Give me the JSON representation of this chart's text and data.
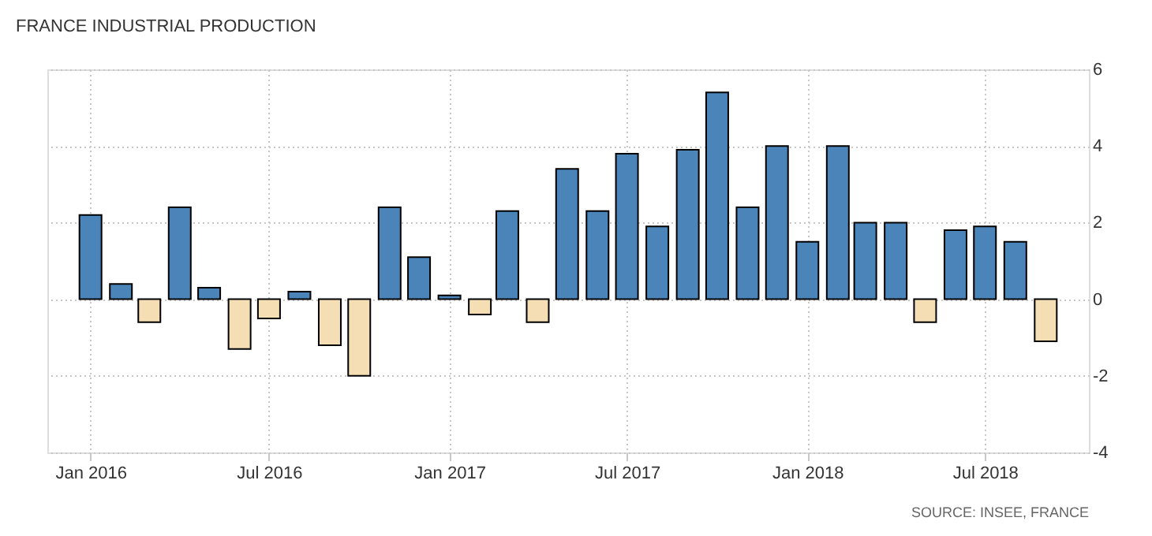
{
  "chart_data": {
    "type": "bar",
    "title": "FRANCE INDUSTRIAL PRODUCTION",
    "x": [
      "2016-01",
      "2016-02",
      "2016-03",
      "2016-04",
      "2016-05",
      "2016-06",
      "2016-07",
      "2016-08",
      "2016-09",
      "2016-10",
      "2016-11",
      "2016-12",
      "2017-01",
      "2017-02",
      "2017-03",
      "2017-04",
      "2017-05",
      "2017-06",
      "2017-07",
      "2017-08",
      "2017-09",
      "2017-10",
      "2017-11",
      "2017-12",
      "2018-01",
      "2018-02",
      "2018-03",
      "2018-04",
      "2018-05",
      "2018-06",
      "2018-07",
      "2018-08",
      "2018-09"
    ],
    "values": [
      2.2,
      0.4,
      -0.6,
      2.4,
      0.3,
      -1.3,
      -0.5,
      0.2,
      -1.2,
      -2.0,
      2.4,
      1.1,
      0.1,
      -0.4,
      2.3,
      -0.6,
      3.4,
      2.3,
      3.8,
      1.9,
      3.9,
      5.4,
      2.4,
      4.0,
      1.5,
      4.0,
      2.0,
      2.0,
      -0.6,
      1.8,
      1.9,
      1.5,
      -1.1
    ],
    "colors": [
      "#4a84b8",
      "#4a84b8",
      "#f5deb3",
      "#4a84b8",
      "#4a84b8",
      "#f5deb3",
      "#f5deb3",
      "#4a84b8",
      "#f5deb3",
      "#f5deb3",
      "#4a84b8",
      "#4a84b8",
      "#4a84b8",
      "#f5deb3",
      "#4a84b8",
      "#f5deb3",
      "#4a84b8",
      "#4a84b8",
      "#4a84b8",
      "#4a84b8",
      "#4a84b8",
      "#4a84b8",
      "#4a84b8",
      "#4a84b8",
      "#4a84b8",
      "#4a84b8",
      "#4a84b8",
      "#4a84b8",
      "#f5deb3",
      "#4a84b8",
      "#4a84b8",
      "#4a84b8",
      "#f5deb3"
    ],
    "xlim": [
      "2015-11-18",
      "2018-10-15"
    ],
    "xticks": [
      {
        "value": "2016-01",
        "label": "Jan 2016"
      },
      {
        "value": "2016-07",
        "label": "Jul 2016"
      },
      {
        "value": "2017-01",
        "label": "Jan 2017"
      },
      {
        "value": "2017-07",
        "label": "Jul 2017"
      },
      {
        "value": "2018-01",
        "label": "Jan 2018"
      },
      {
        "value": "2018-07",
        "label": "Jul 2018"
      }
    ],
    "ylim": [
      -4,
      6
    ],
    "yticks": [
      -4,
      -2,
      0,
      2,
      4,
      6
    ],
    "grid": true,
    "annotations": [
      "SOURCE: INSEE, FRANCE"
    ]
  }
}
